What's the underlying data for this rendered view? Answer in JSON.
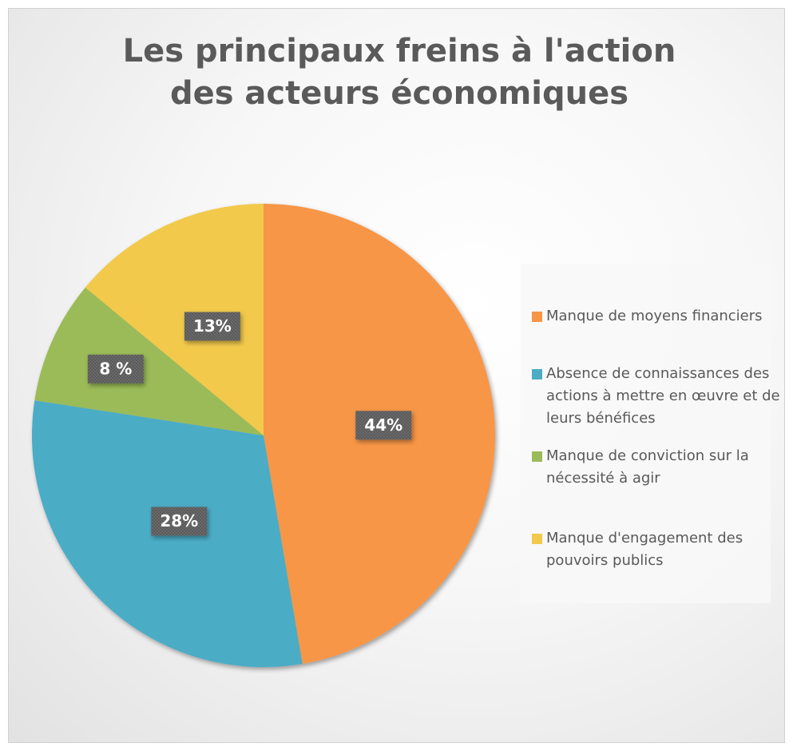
{
  "chart_data": {
    "type": "pie",
    "title": "Les principaux freins à l'action des acteurs économiques",
    "categories": [
      "Manque de moyens financiers",
      "Absence de connaissances des actions à mettre en œuvre et de leurs bénéfices",
      "Manque de conviction sur la nécessité à agir",
      "Manque d'engagement des pouvoirs publics"
    ],
    "values": [
      44,
      28,
      8,
      13
    ],
    "value_labels": [
      "44%",
      "28%",
      "8 %",
      "13%"
    ],
    "colors": [
      "#f79646",
      "#4bacc6",
      "#9bbb59",
      "#f2c94c"
    ],
    "legend": "right"
  }
}
